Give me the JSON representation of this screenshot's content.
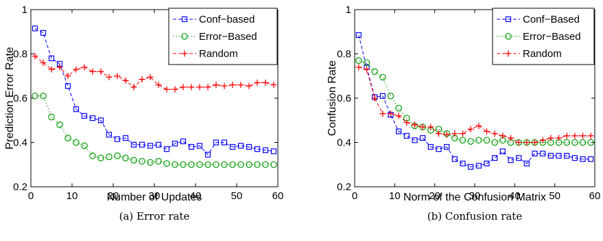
{
  "chart_data": [
    {
      "type": "line",
      "caption": "(a) Error rate",
      "xlabel": "Number of Updates",
      "ylabel": "Prediction Error Rate",
      "xlim": [
        0,
        60
      ],
      "ylim": [
        0.2,
        1
      ],
      "xticks": [
        "0",
        "10",
        "20",
        "30",
        "40",
        "50",
        "60"
      ],
      "yticks": [
        "0.2",
        "0.4",
        "0.6",
        "0.8",
        "1"
      ],
      "legend_position": "top-right",
      "series": [
        {
          "name": "Conf−based",
          "color": "#0000ff",
          "marker": "square",
          "line": "dashed",
          "x": [
            1,
            3,
            5,
            7,
            9,
            11,
            13,
            15,
            17,
            19,
            21,
            23,
            25,
            27,
            29,
            31,
            33,
            35,
            37,
            39,
            41,
            43,
            45,
            47,
            49,
            51,
            53,
            55,
            57,
            59
          ],
          "y": [
            0.915,
            0.895,
            0.78,
            0.755,
            0.655,
            0.55,
            0.52,
            0.51,
            0.5,
            0.435,
            0.415,
            0.42,
            0.39,
            0.39,
            0.385,
            0.39,
            0.37,
            0.395,
            0.405,
            0.38,
            0.385,
            0.345,
            0.4,
            0.4,
            0.38,
            0.385,
            0.38,
            0.37,
            0.365,
            0.36
          ]
        },
        {
          "name": "Error−Based",
          "color": "#009900",
          "marker": "circle",
          "line": "dotted",
          "x": [
            1,
            3,
            5,
            7,
            9,
            11,
            13,
            15,
            17,
            19,
            21,
            23,
            25,
            27,
            29,
            31,
            33,
            35,
            37,
            39,
            41,
            43,
            45,
            47,
            49,
            51,
            53,
            55,
            57,
            59
          ],
          "y": [
            0.61,
            0.61,
            0.515,
            0.48,
            0.42,
            0.4,
            0.385,
            0.34,
            0.33,
            0.335,
            0.34,
            0.33,
            0.32,
            0.315,
            0.31,
            0.315,
            0.305,
            0.3,
            0.3,
            0.3,
            0.3,
            0.3,
            0.3,
            0.3,
            0.3,
            0.3,
            0.3,
            0.3,
            0.3,
            0.3
          ]
        },
        {
          "name": "Random",
          "color": "#ff0000",
          "marker": "plus",
          "line": "dashed",
          "x": [
            1,
            3,
            5,
            7,
            9,
            11,
            13,
            15,
            17,
            19,
            21,
            23,
            25,
            27,
            29,
            31,
            33,
            35,
            37,
            39,
            41,
            43,
            45,
            47,
            49,
            51,
            53,
            55,
            57,
            59
          ],
          "y": [
            0.79,
            0.76,
            0.73,
            0.74,
            0.7,
            0.73,
            0.74,
            0.72,
            0.72,
            0.695,
            0.7,
            0.68,
            0.65,
            0.685,
            0.695,
            0.66,
            0.64,
            0.64,
            0.65,
            0.65,
            0.65,
            0.65,
            0.66,
            0.655,
            0.66,
            0.66,
            0.655,
            0.67,
            0.67,
            0.66
          ]
        }
      ]
    },
    {
      "type": "line",
      "caption": "(b) Confusion rate",
      "xlabel": "Norm of the Confusion Matrix",
      "ylabel": "Confusion Rate",
      "xlim": [
        0,
        60
      ],
      "ylim": [
        0.2,
        1
      ],
      "xticks": [
        "0",
        "10",
        "20",
        "30",
        "40",
        "50",
        "60"
      ],
      "yticks": [
        "0.2",
        "0.4",
        "0.6",
        "0.8",
        "1"
      ],
      "legend_position": "top-right",
      "series": [
        {
          "name": "Conf−Based",
          "color": "#0000ff",
          "marker": "square",
          "line": "dashed",
          "x": [
            1,
            3,
            5,
            7,
            9,
            11,
            13,
            15,
            17,
            19,
            21,
            23,
            25,
            27,
            29,
            31,
            33,
            35,
            37,
            39,
            41,
            43,
            45,
            47,
            49,
            51,
            53,
            55,
            57,
            59
          ],
          "y": [
            0.885,
            0.74,
            0.605,
            0.61,
            0.525,
            0.45,
            0.43,
            0.41,
            0.42,
            0.38,
            0.37,
            0.38,
            0.325,
            0.305,
            0.29,
            0.295,
            0.305,
            0.33,
            0.36,
            0.32,
            0.33,
            0.305,
            0.35,
            0.35,
            0.34,
            0.34,
            0.34,
            0.33,
            0.325,
            0.325
          ]
        },
        {
          "name": "Error−Based",
          "color": "#009900",
          "marker": "circle",
          "line": "dotted",
          "x": [
            1,
            3,
            5,
            7,
            9,
            11,
            13,
            15,
            17,
            19,
            21,
            23,
            25,
            27,
            29,
            31,
            33,
            35,
            37,
            39,
            41,
            43,
            45,
            47,
            49,
            51,
            53,
            55,
            57,
            59
          ],
          "y": [
            0.77,
            0.76,
            0.72,
            0.695,
            0.61,
            0.555,
            0.51,
            0.475,
            0.47,
            0.455,
            0.46,
            0.44,
            0.42,
            0.41,
            0.405,
            0.41,
            0.41,
            0.4,
            0.41,
            0.4,
            0.4,
            0.4,
            0.4,
            0.4,
            0.4,
            0.4,
            0.4,
            0.4,
            0.4,
            0.4
          ]
        },
        {
          "name": "Random",
          "color": "#ff0000",
          "marker": "plus",
          "line": "dashed",
          "x": [
            1,
            3,
            5,
            7,
            9,
            11,
            13,
            15,
            17,
            19,
            21,
            23,
            25,
            27,
            29,
            31,
            33,
            35,
            37,
            39,
            41,
            43,
            45,
            47,
            49,
            51,
            53,
            55,
            57,
            59
          ],
          "y": [
            0.74,
            0.73,
            0.6,
            0.53,
            0.53,
            0.52,
            0.49,
            0.48,
            0.47,
            0.47,
            0.44,
            0.435,
            0.44,
            0.44,
            0.46,
            0.475,
            0.45,
            0.44,
            0.43,
            0.42,
            0.4,
            0.4,
            0.4,
            0.41,
            0.42,
            0.42,
            0.43,
            0.43,
            0.43,
            0.43
          ]
        }
      ]
    }
  ]
}
